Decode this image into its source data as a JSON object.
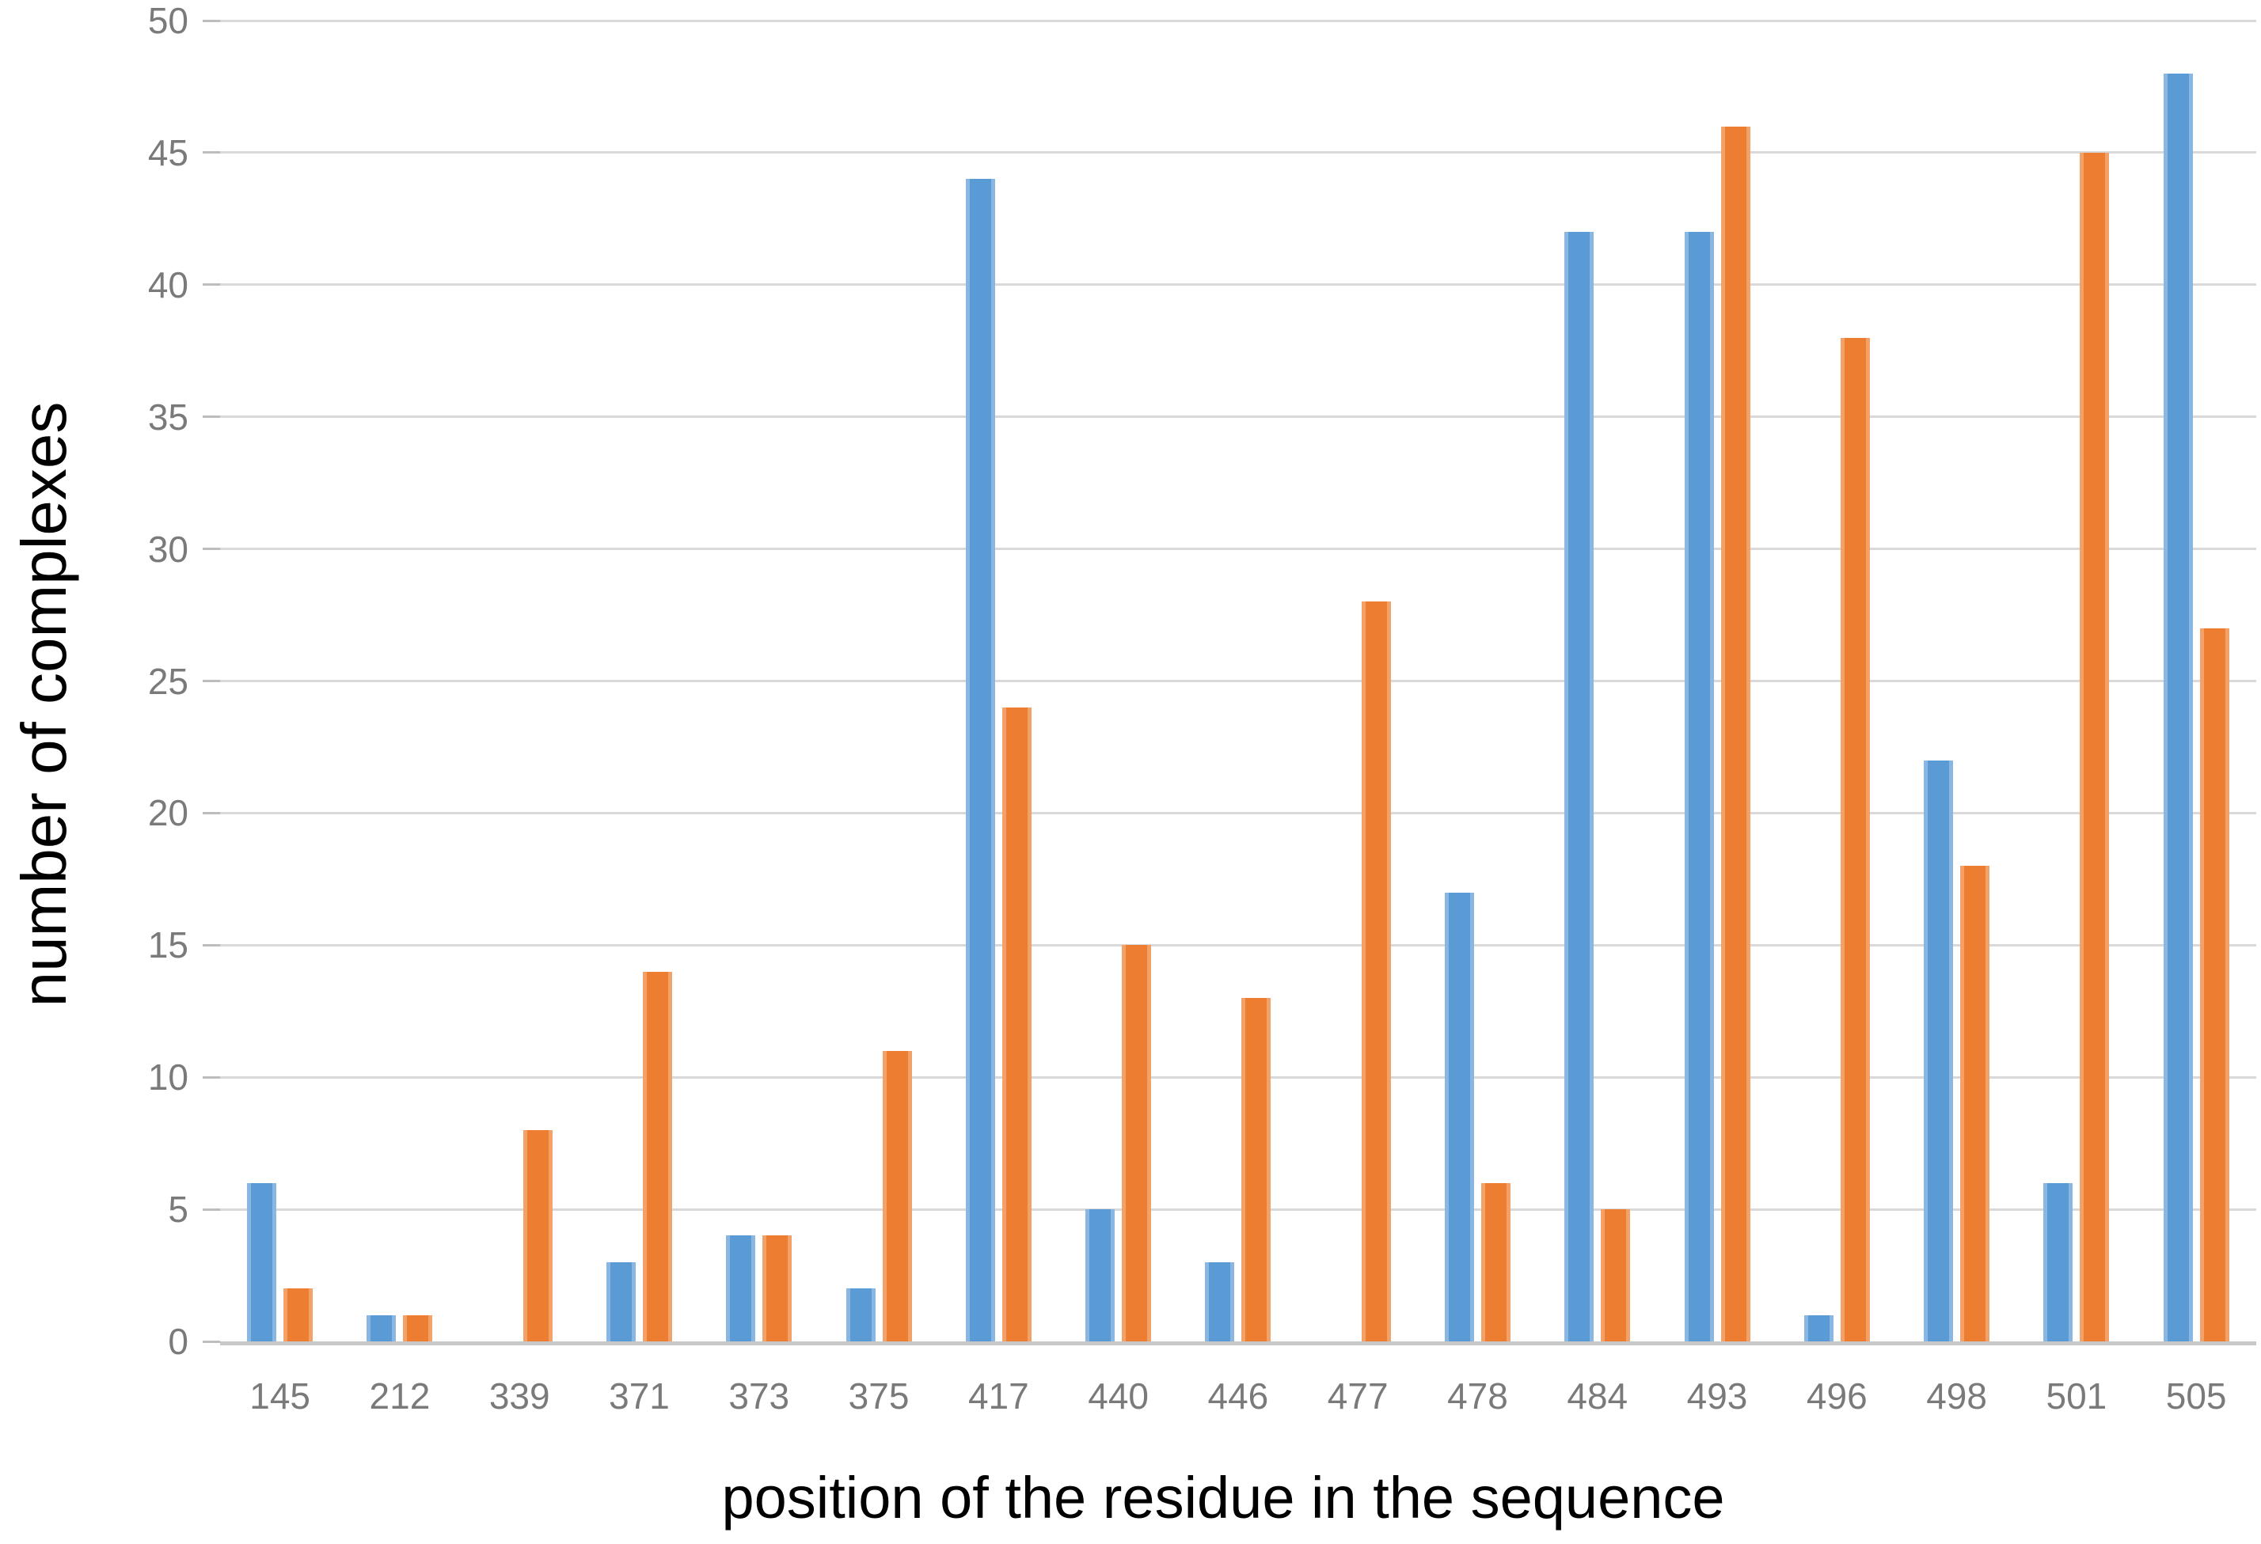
{
  "chart_data": {
    "type": "bar",
    "title": "",
    "xlabel": "position of the residue in the sequence",
    "ylabel": "number of complexes",
    "categories": [
      "145",
      "212",
      "339",
      "371",
      "373",
      "375",
      "417",
      "440",
      "446",
      "477",
      "478",
      "484",
      "493",
      "496",
      "498",
      "501",
      "505"
    ],
    "series": [
      {
        "name": "blue-series",
        "color": "#5b9bd5",
        "edge_color": "#8ab6e2",
        "values": [
          6,
          1,
          0,
          3,
          4,
          2,
          44,
          5,
          3,
          0,
          17,
          42,
          42,
          1,
          22,
          6,
          48
        ]
      },
      {
        "name": "orange-series",
        "color": "#ed7d31",
        "edge_color": "#f2a169",
        "values": [
          2,
          1,
          8,
          14,
          4,
          11,
          24,
          15,
          13,
          28,
          6,
          5,
          46,
          38,
          18,
          45,
          27
        ]
      }
    ],
    "ylim": [
      0,
      50
    ],
    "ytick_step": 5,
    "grid": true,
    "legend": false,
    "gridline_color": "#d9d9d9",
    "axis_line_color": "#c8c8c8",
    "tick_label_color": "#7a7a7a",
    "title_color": "#000000"
  }
}
